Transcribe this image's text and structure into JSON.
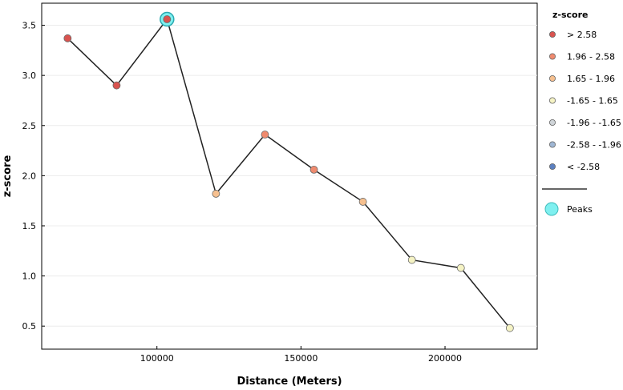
{
  "chart_data": {
    "type": "line",
    "xlabel": "Distance (Meters)",
    "ylabel": "z-score",
    "xlim": [
      60000,
      232000
    ],
    "ylim": [
      0.27,
      3.72
    ],
    "grid": true,
    "legend_position": "right",
    "x_ticks": [
      100000,
      150000,
      200000
    ],
    "x_tick_labels": [
      "100000",
      "150000",
      "200000"
    ],
    "y_ticks": [
      0.5,
      1.0,
      1.5,
      2.0,
      2.5,
      3.0,
      3.5
    ],
    "y_tick_labels": [
      "0.5",
      "1.0",
      "1.5",
      "2.0",
      "2.5",
      "3.0",
      "3.5"
    ],
    "series": [
      {
        "x": [
          69000,
          86000,
          103500,
          120500,
          137500,
          154500,
          171500,
          188500,
          205500,
          222500
        ],
        "y": [
          3.37,
          2.9,
          3.56,
          1.82,
          2.41,
          2.06,
          1.74,
          1.16,
          1.08,
          0.48
        ],
        "categories": [
          "> 2.58",
          "> 2.58",
          "> 2.58",
          "1.65 - 1.96",
          "1.96 - 2.58",
          "1.96 - 2.58",
          "1.65 - 1.96",
          "-1.65 - 1.65",
          "-1.65 - 1.65",
          "-1.65 - 1.65"
        ]
      }
    ],
    "peaks": [
      {
        "x": 103500,
        "y": 3.56
      }
    ],
    "legend": {
      "title": "z-score",
      "entries": [
        {
          "label": "> 2.58",
          "color": "#d9534f"
        },
        {
          "label": "1.96 - 2.58",
          "color": "#ef8a6e"
        },
        {
          "label": "1.65 - 1.96",
          "color": "#f6c08f"
        },
        {
          "label": "-1.65 - 1.65",
          "color": "#f5f3c4"
        },
        {
          "label": "-1.96 - -1.65",
          "color": "#cfd4d8"
        },
        {
          "label": "-2.58 - -1.96",
          "color": "#9fb6d3"
        },
        {
          "label": "< -2.58",
          "color": "#5b80c0"
        }
      ],
      "peaks_label": "Peaks",
      "peaks_color": "#7ff0f0"
    }
  }
}
